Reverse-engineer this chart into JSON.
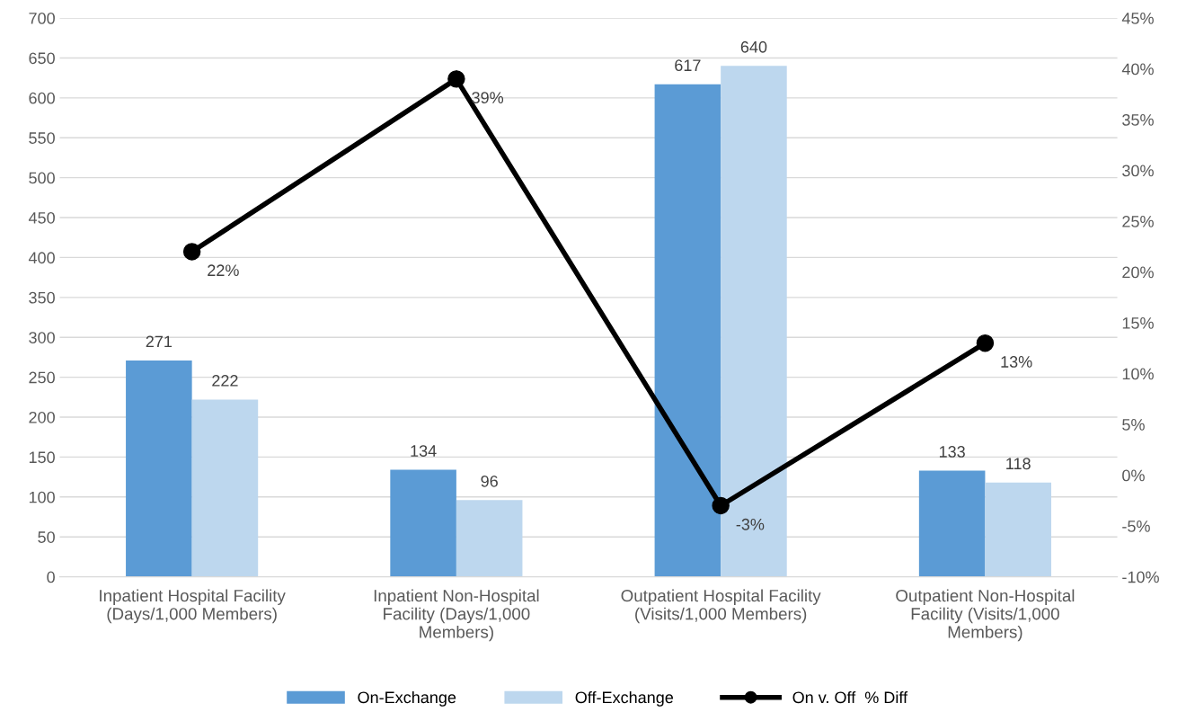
{
  "chart_data": {
    "type": "bar",
    "categories": [
      "Inpatient Hospital Facility\n(Days/1,000 Members)",
      "Inpatient Non-Hospital\nFacility (Days/1,000\nMembers)",
      "Outpatient Hospital Facility\n(Visits/1,000 Members)",
      "Outpatient Non-Hospital\nFacility (Visits/1,000\nMembers)"
    ],
    "series": [
      {
        "name": "On-Exchange",
        "color": "#5b9bd5",
        "values": [
          271,
          134,
          617,
          133
        ]
      },
      {
        "name": "Off-Exchange",
        "color": "#bdd7ee",
        "values": [
          222,
          96,
          640,
          118
        ]
      },
      {
        "name": "On v. Off  % Diff",
        "type": "line",
        "axis": "y2",
        "color": "#000000",
        "marker": "circle",
        "values": [
          22,
          39,
          -3,
          13
        ],
        "value_labels": [
          "22%",
          "39%",
          "-3%",
          "13%"
        ]
      }
    ],
    "ylim": [
      0,
      700
    ],
    "yticks": [
      0,
      50,
      100,
      150,
      200,
      250,
      300,
      350,
      400,
      450,
      500,
      550,
      600,
      650,
      700
    ],
    "y2lim": [
      -10,
      45
    ],
    "y2ticks": [
      {
        "value": -10,
        "label": "-10%"
      },
      {
        "value": -5,
        "label": "-5%"
      },
      {
        "value": 0,
        "label": "0%"
      },
      {
        "value": 5,
        "label": "5%"
      },
      {
        "value": 10,
        "label": "10%"
      },
      {
        "value": 15,
        "label": "15%"
      },
      {
        "value": 20,
        "label": "20%"
      },
      {
        "value": 25,
        "label": "25%"
      },
      {
        "value": 30,
        "label": "30%"
      },
      {
        "value": 35,
        "label": "35%"
      },
      {
        "value": 40,
        "label": "40%"
      },
      {
        "value": 45,
        "label": "45%"
      }
    ],
    "grid": "y",
    "legend": "bottom",
    "data_labels": true
  }
}
